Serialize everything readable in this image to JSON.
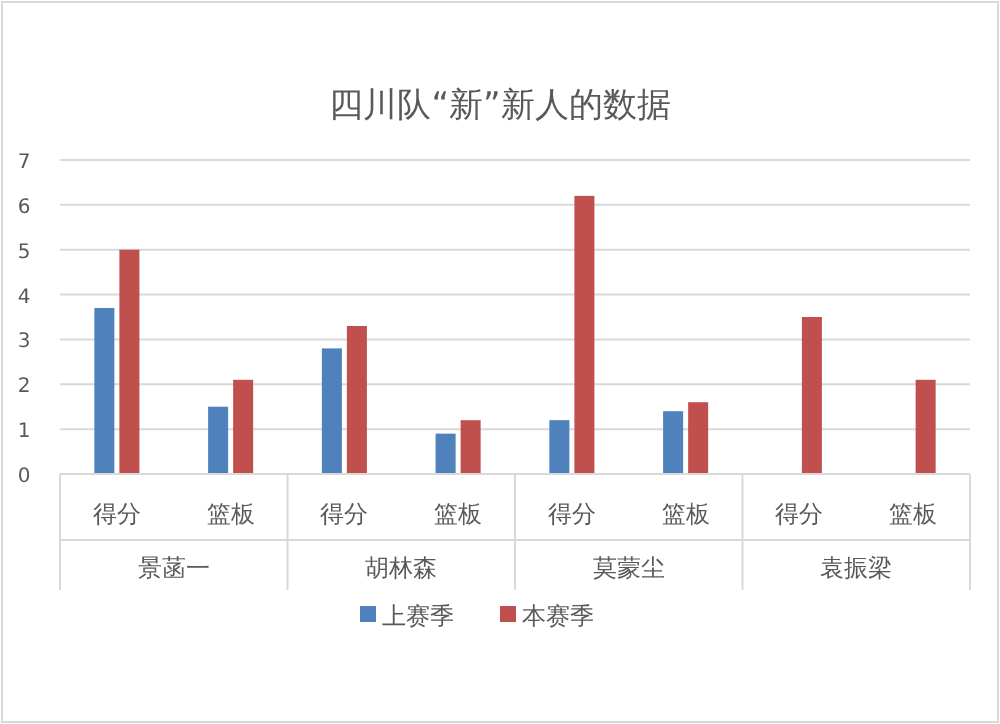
{
  "chart_data": {
    "type": "bar",
    "title": "四川队“新”新人的数据",
    "categories": [
      "得分",
      "篮板",
      "得分",
      "篮板",
      "得分",
      "篮板",
      "得分",
      "篮板"
    ],
    "annotations": [
      "景菡一",
      "胡林森",
      "莫蒙尘",
      "袁振梁"
    ],
    "series": [
      {
        "name": "上赛季",
        "color": "#4f81bd",
        "values": [
          3.7,
          1.5,
          2.8,
          0.9,
          1.2,
          1.4,
          null,
          null
        ]
      },
      {
        "name": "本赛季",
        "color": "#c0504d",
        "values": [
          5.0,
          2.1,
          3.3,
          1.2,
          6.2,
          1.6,
          3.5,
          2.1
        ]
      }
    ],
    "ylim": [
      0,
      7
    ],
    "yticks": [
      0,
      1,
      2,
      3,
      4,
      5,
      6,
      7
    ],
    "grid": "y",
    "legend": "bottom"
  }
}
